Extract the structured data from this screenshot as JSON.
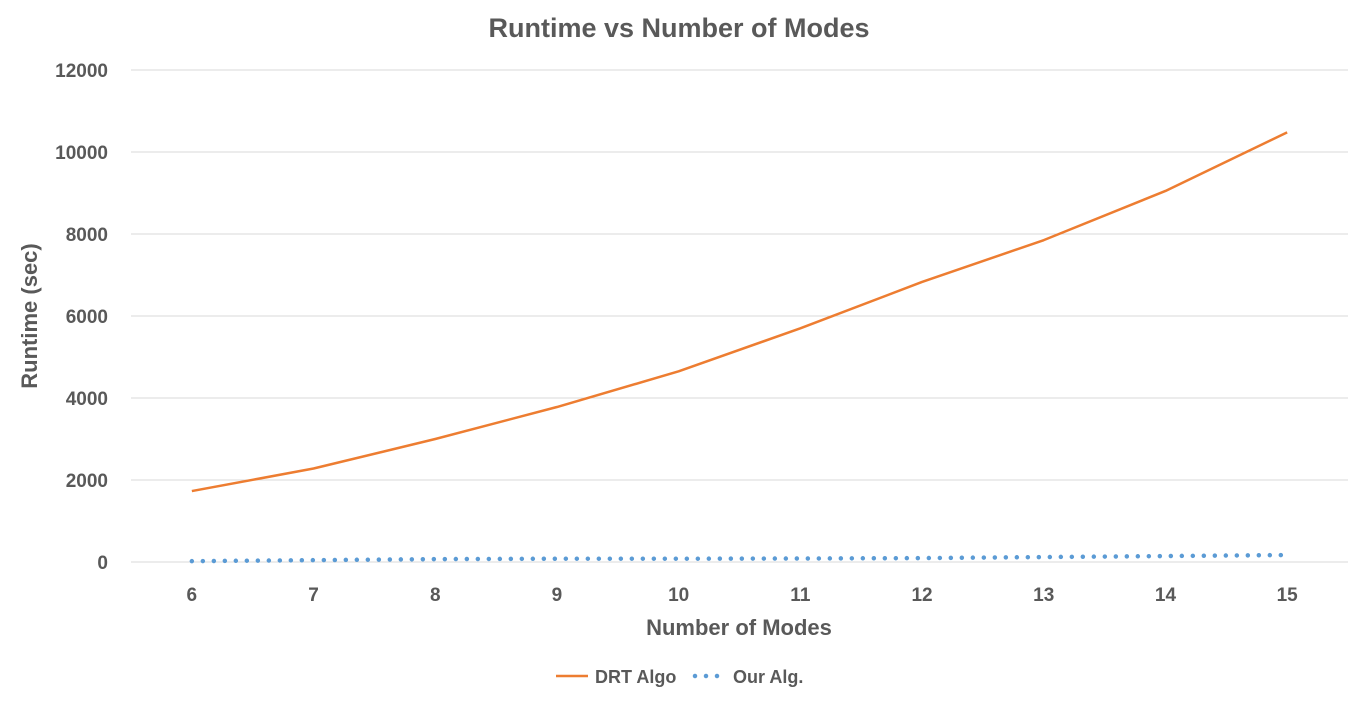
{
  "chart_data": {
    "type": "line",
    "title": "Runtime vs Number of Modes",
    "xlabel": "Number of Modes",
    "ylabel": "Runtime (sec)",
    "x": [
      6,
      7,
      8,
      9,
      10,
      11,
      12,
      13,
      14,
      15
    ],
    "ylim": [
      0,
      12000
    ],
    "yticks": [
      0,
      2000,
      4000,
      6000,
      8000,
      10000,
      12000
    ],
    "grid": true,
    "legend_position": "bottom",
    "series": [
      {
        "name": "DRT Algo",
        "values": [
          1730,
          2280,
          3000,
          3780,
          4650,
          5700,
          6830,
          7850,
          9050,
          10480
        ],
        "color": "#ED7D31",
        "style": "solid"
      },
      {
        "name": "Our Alg.",
        "values": [
          20,
          45,
          70,
          80,
          80,
          85,
          95,
          120,
          145,
          170
        ],
        "color": "#5B9BD5",
        "style": "dotted"
      }
    ]
  }
}
